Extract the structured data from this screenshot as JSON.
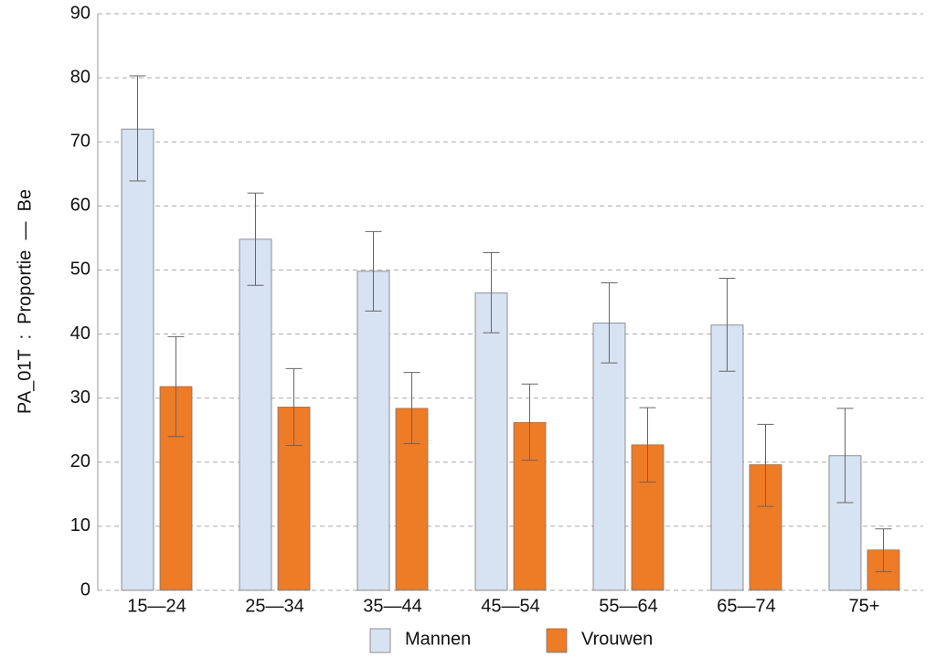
{
  "chart_data": {
    "type": "bar",
    "y_label": "PA_01T  :  Proportie  —  Be",
    "categories": [
      "15—24",
      "25—34",
      "35—44",
      "45—54",
      "55—64",
      "65—74",
      "75+"
    ],
    "series": [
      {
        "name": "Mannen",
        "color": "#d7e2f2",
        "values": [
          72.0,
          54.8,
          49.8,
          46.4,
          41.7,
          41.4,
          21.0
        ],
        "lower": [
          63.9,
          47.6,
          43.6,
          40.2,
          35.5,
          34.2,
          13.7
        ],
        "upper": [
          80.3,
          62.0,
          56.0,
          52.7,
          48.0,
          48.7,
          28.4
        ]
      },
      {
        "name": "Vrouwen",
        "color": "#ee7b26",
        "values": [
          31.8,
          28.6,
          28.4,
          26.2,
          22.7,
          19.6,
          6.3
        ],
        "lower": [
          24.0,
          22.6,
          22.9,
          20.3,
          16.9,
          13.1,
          2.9
        ],
        "upper": [
          39.6,
          34.6,
          34.0,
          32.2,
          28.5,
          25.9,
          9.6
        ]
      }
    ],
    "ylim": [
      0,
      90
    ],
    "yticks": [
      0,
      10,
      20,
      30,
      40,
      50,
      60,
      70,
      80,
      90
    ],
    "grid": true,
    "legend": "bottom"
  }
}
